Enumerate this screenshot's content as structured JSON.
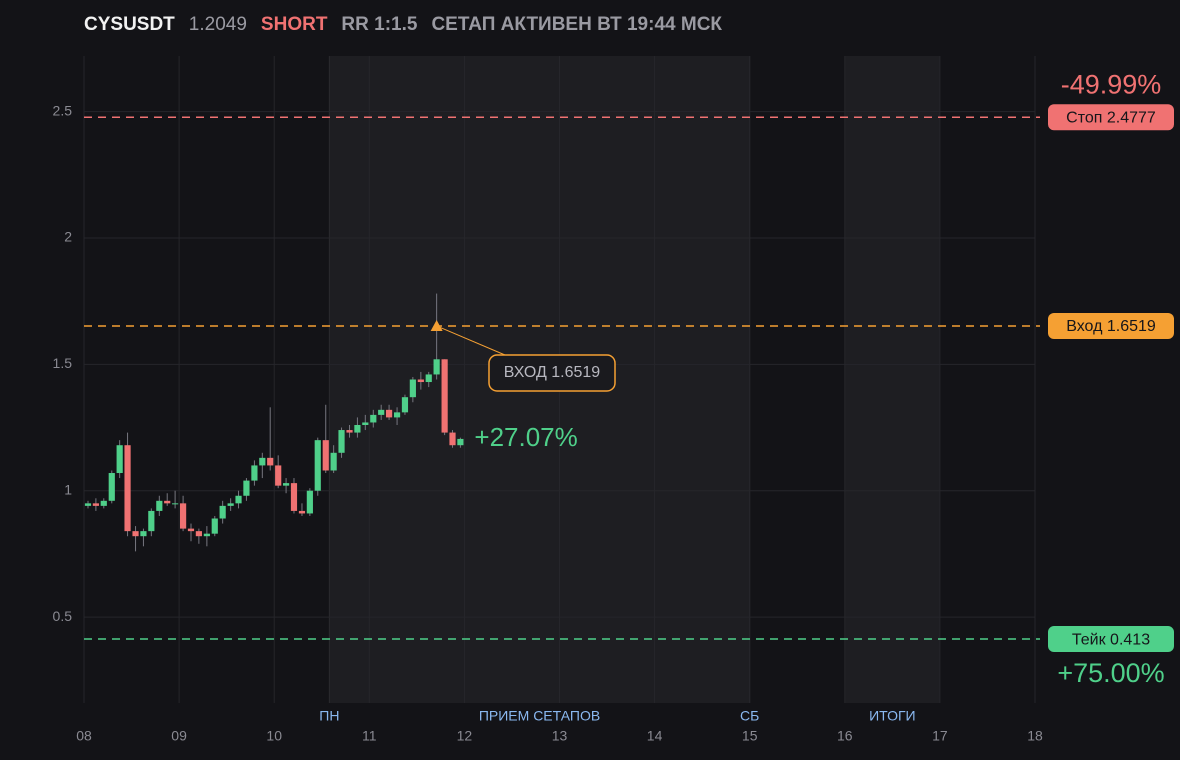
{
  "header": {
    "symbol": "CYSUSDT",
    "price": "1.2049",
    "side": "SHORT",
    "rr": "RR 1:1.5",
    "status": "СЕТАП АКТИВЕН ВТ 19:44 МСК"
  },
  "chart_data": {
    "type": "candlestick",
    "x": [
      8.042,
      8.125,
      8.208,
      8.292,
      8.375,
      8.458,
      8.542,
      8.625,
      8.708,
      8.792,
      8.875,
      8.958,
      9.042,
      9.125,
      9.208,
      9.292,
      9.375,
      9.458,
      9.542,
      9.625,
      9.708,
      9.792,
      9.875,
      9.958,
      10.042,
      10.125,
      10.208,
      10.292,
      10.375,
      10.458,
      10.542,
      10.625,
      10.708,
      10.792,
      10.875,
      10.958,
      11.042,
      11.125,
      11.208,
      11.292,
      11.375,
      11.458,
      11.542,
      11.625,
      11.708,
      11.792,
      11.875,
      11.958
    ],
    "open": [
      0.94,
      0.95,
      0.94,
      0.96,
      1.07,
      1.18,
      0.84,
      0.82,
      0.84,
      0.92,
      0.96,
      0.95,
      0.95,
      0.85,
      0.84,
      0.82,
      0.83,
      0.89,
      0.94,
      0.95,
      0.98,
      1.04,
      1.1,
      1.13,
      1.1,
      1.02,
      1.03,
      0.92,
      0.91,
      1.0,
      1.2,
      1.08,
      1.15,
      1.24,
      1.23,
      1.26,
      1.27,
      1.3,
      1.32,
      1.29,
      1.31,
      1.37,
      1.44,
      1.43,
      1.46,
      1.52,
      1.23,
      1.18
    ],
    "high": [
      0.96,
      0.97,
      0.97,
      1.08,
      1.2,
      1.23,
      0.86,
      0.85,
      0.93,
      0.98,
      0.99,
      1.0,
      0.98,
      0.87,
      0.85,
      0.86,
      0.9,
      0.96,
      0.97,
      1.0,
      1.05,
      1.12,
      1.15,
      1.33,
      1.14,
      1.05,
      1.05,
      0.95,
      1.01,
      1.21,
      1.34,
      1.18,
      1.25,
      1.26,
      1.29,
      1.3,
      1.32,
      1.34,
      1.34,
      1.33,
      1.38,
      1.45,
      1.47,
      1.47,
      1.78,
      1.52,
      1.24,
      1.21
    ],
    "low": [
      0.93,
      0.92,
      0.93,
      0.95,
      1.05,
      0.82,
      0.76,
      0.78,
      0.82,
      0.9,
      0.94,
      0.93,
      0.84,
      0.8,
      0.79,
      0.78,
      0.82,
      0.87,
      0.92,
      0.93,
      0.96,
      1.02,
      1.05,
      1.08,
      1.01,
      0.99,
      0.91,
      0.9,
      0.9,
      0.98,
      1.07,
      1.07,
      1.13,
      1.21,
      1.21,
      1.24,
      1.25,
      1.28,
      1.28,
      1.26,
      1.3,
      1.35,
      1.4,
      1.41,
      1.44,
      1.22,
      1.17,
      1.17
    ],
    "close": [
      0.95,
      0.94,
      0.96,
      1.07,
      1.18,
      0.84,
      0.82,
      0.84,
      0.92,
      0.96,
      0.95,
      0.95,
      0.85,
      0.84,
      0.82,
      0.83,
      0.89,
      0.94,
      0.95,
      0.98,
      1.04,
      1.1,
      1.13,
      1.1,
      1.02,
      1.03,
      0.92,
      0.91,
      1.0,
      1.2,
      1.08,
      1.15,
      1.24,
      1.23,
      1.26,
      1.27,
      1.3,
      1.32,
      1.29,
      1.31,
      1.37,
      1.44,
      1.43,
      1.46,
      1.52,
      1.23,
      1.18,
      1.2049
    ],
    "up_color": "#4fd08a",
    "down_color": "#f07272",
    "xlim": [
      8,
      18
    ],
    "xticks": [
      {
        "value": 8,
        "label": "08"
      },
      {
        "value": 9,
        "label": "09"
      },
      10,
      11,
      12,
      13,
      14,
      15,
      16,
      17,
      18
    ],
    "ylim": [
      0.16,
      2.72
    ],
    "yticks": [
      0.5,
      1,
      1.5,
      2,
      2.5
    ],
    "grid": true,
    "regions": [
      {
        "start": 10.58,
        "end": 15,
        "label": "ПРИЕМ СЕТАПОВ"
      },
      {
        "start": 16,
        "end": 17,
        "label": "ИТОГИ"
      }
    ],
    "x_markers": [
      {
        "x": 10.58,
        "label": "ПН"
      },
      {
        "x": 15,
        "label": "СБ"
      }
    ],
    "levels": [
      {
        "value": 2.4777,
        "label": "Стоп 2.4777",
        "percent": "-49.99%",
        "color": "#f07272"
      },
      {
        "value": 1.6519,
        "label": "Вход 1.6519",
        "color": "#f5a033"
      },
      {
        "value": 0.413,
        "label": "Тейк 0.413",
        "percent": "+75.00%",
        "color": "#4fd08a"
      }
    ],
    "entry_marker": {
      "x": 11.708,
      "value": 1.6519,
      "label": "ВХОД 1.6519",
      "color": "#f5a033"
    },
    "pnl": "+27.07%"
  }
}
